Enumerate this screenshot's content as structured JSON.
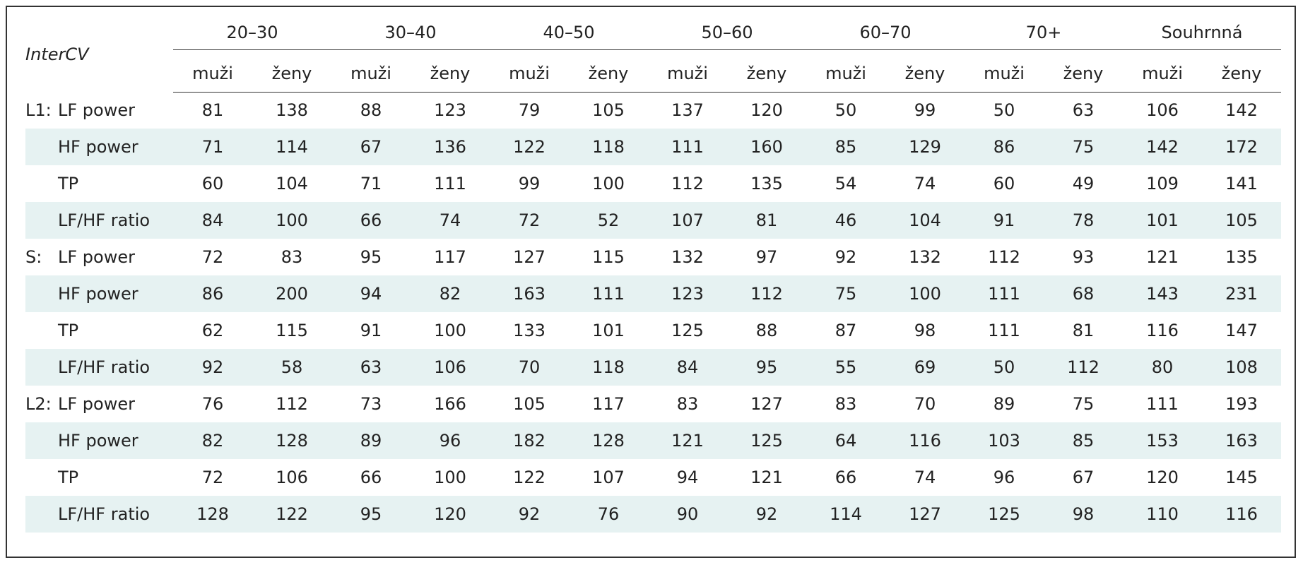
{
  "header": {
    "title": "InterCV",
    "groups": [
      "20–30",
      "30–40",
      "40–50",
      "50–60",
      "60–70",
      "70+",
      "Souhrnná"
    ],
    "subheaders": [
      "muži",
      "ženy",
      "muži",
      "ženy",
      "muži",
      "ženy",
      "muži",
      "ženy",
      "muži",
      "ženy",
      "muži",
      "ženy",
      "muži",
      "ženy"
    ]
  },
  "table": {
    "sections": [
      {
        "label": "L1:",
        "rows": [
          {
            "name": "LF power",
            "values": [
              81,
              138,
              88,
              123,
              79,
              105,
              137,
              120,
              50,
              99,
              50,
              63,
              106,
              142
            ]
          },
          {
            "name": "HF power",
            "values": [
              71,
              114,
              67,
              136,
              122,
              118,
              111,
              160,
              85,
              129,
              86,
              75,
              142,
              172
            ]
          },
          {
            "name": "TP",
            "values": [
              60,
              104,
              71,
              111,
              99,
              100,
              112,
              135,
              54,
              74,
              60,
              49,
              109,
              141
            ]
          },
          {
            "name": "LF/HF ratio",
            "values": [
              84,
              100,
              66,
              74,
              72,
              52,
              107,
              81,
              46,
              104,
              91,
              78,
              101,
              105
            ]
          }
        ]
      },
      {
        "label": "S:",
        "rows": [
          {
            "name": "LF power",
            "values": [
              72,
              83,
              95,
              117,
              127,
              115,
              132,
              97,
              92,
              132,
              112,
              93,
              121,
              135
            ]
          },
          {
            "name": "HF power",
            "values": [
              86,
              200,
              94,
              82,
              163,
              111,
              123,
              112,
              75,
              100,
              111,
              68,
              143,
              231
            ]
          },
          {
            "name": "TP",
            "values": [
              62,
              115,
              91,
              100,
              133,
              101,
              125,
              88,
              87,
              98,
              111,
              81,
              116,
              147
            ]
          },
          {
            "name": "LF/HF ratio",
            "values": [
              92,
              58,
              63,
              106,
              70,
              118,
              84,
              95,
              55,
              69,
              50,
              112,
              80,
              108
            ]
          }
        ]
      },
      {
        "label": "L2:",
        "rows": [
          {
            "name": "LF power",
            "values": [
              76,
              112,
              73,
              166,
              105,
              117,
              83,
              127,
              83,
              70,
              89,
              75,
              111,
              193
            ]
          },
          {
            "name": "HF power",
            "values": [
              82,
              128,
              89,
              96,
              182,
              128,
              121,
              125,
              64,
              116,
              103,
              85,
              153,
              163
            ]
          },
          {
            "name": "TP",
            "values": [
              72,
              106,
              66,
              100,
              122,
              107,
              94,
              121,
              66,
              74,
              96,
              67,
              120,
              145
            ]
          },
          {
            "name": "LF/HF ratio",
            "values": [
              128,
              122,
              95,
              120,
              92,
              76,
              90,
              92,
              114,
              127,
              125,
              98,
              110,
              116
            ]
          }
        ]
      }
    ]
  }
}
